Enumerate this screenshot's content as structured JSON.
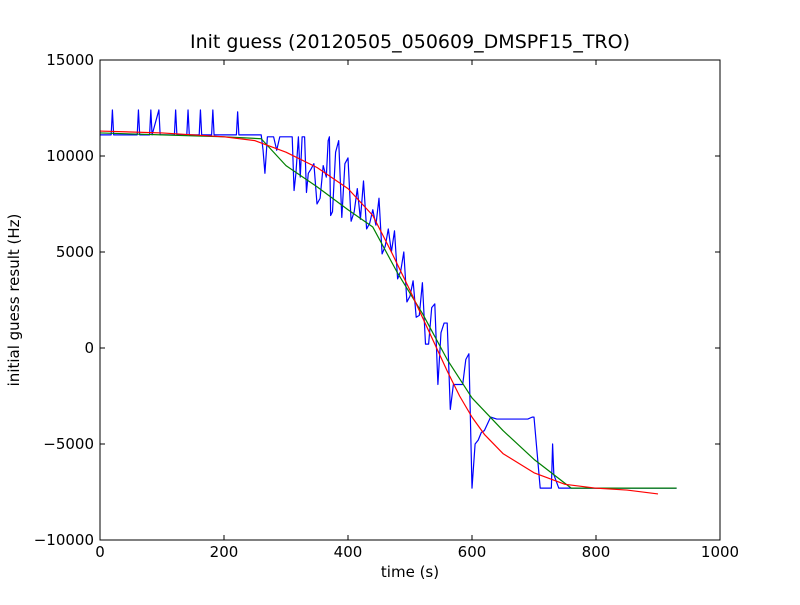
{
  "chart_data": {
    "type": "line",
    "title": "Init guess (20120505_050609_DMSPF15_TRO)",
    "xlabel": "time (s)",
    "ylabel": "initial guess result (Hz)",
    "xlim": [
      0,
      1000
    ],
    "ylim": [
      -10000,
      15000
    ],
    "xticks": [
      0,
      200,
      400,
      600,
      800,
      1000
    ],
    "xtick_labels": [
      "0",
      "200",
      "400",
      "600",
      "800",
      "1000"
    ],
    "yticks": [
      -10000,
      -5000,
      0,
      5000,
      10000,
      15000
    ],
    "ytick_labels": [
      "−10000",
      "−5000",
      "0",
      "5000",
      "10000",
      "15000"
    ],
    "grid": false,
    "legend": false,
    "series": [
      {
        "color": "#0000ff",
        "x": [
          0,
          18,
          20,
          22,
          60,
          62,
          64,
          80,
          82,
          84,
          95,
          97,
          105,
          107,
          120,
          122,
          124,
          140,
          142,
          144,
          160,
          162,
          164,
          180,
          182,
          184,
          220,
          222,
          224,
          260,
          263,
          266,
          270,
          280,
          285,
          290,
          297,
          300,
          303,
          310,
          313,
          316,
          320,
          323,
          326,
          330,
          333,
          336,
          340,
          345,
          350,
          355,
          360,
          365,
          368,
          370,
          372,
          375,
          380,
          385,
          390,
          395,
          400,
          405,
          410,
          415,
          420,
          425,
          430,
          435,
          440,
          445,
          450,
          455,
          460,
          465,
          470,
          475,
          480,
          485,
          490,
          495,
          500,
          505,
          510,
          515,
          520,
          525,
          530,
          535,
          540,
          545,
          550,
          555,
          560,
          565,
          570,
          575,
          580,
          585,
          590,
          595,
          600,
          605,
          610,
          615,
          620,
          630,
          640,
          660,
          680,
          690,
          697,
          700,
          710,
          720,
          728,
          730,
          732,
          740,
          760,
          800,
          850,
          900,
          930
        ],
        "y": [
          11100,
          11100,
          12400,
          11100,
          11100,
          12400,
          11100,
          11100,
          12400,
          11100,
          12400,
          11100,
          11100,
          11100,
          11100,
          12400,
          11100,
          11100,
          12400,
          11100,
          11100,
          12400,
          11100,
          11100,
          12400,
          11100,
          11100,
          12300,
          11100,
          11100,
          10300,
          9100,
          11000,
          11000,
          10300,
          11000,
          11000,
          11000,
          11000,
          11000,
          8200,
          9100,
          11000,
          8900,
          11000,
          11000,
          8100,
          9100,
          9300,
          9600,
          7500,
          7800,
          9500,
          8900,
          10800,
          11000,
          6900,
          7100,
          10200,
          10800,
          6800,
          9600,
          9900,
          6600,
          7100,
          8300,
          6700,
          8700,
          6200,
          6500,
          7200,
          6400,
          7800,
          4900,
          5300,
          6200,
          5000,
          6100,
          3600,
          4000,
          5000,
          2400,
          2700,
          3500,
          1600,
          1700,
          3400,
          200,
          200,
          2100,
          2300,
          -1900,
          800,
          1300,
          1300,
          -3200,
          -1900,
          -1900,
          -1900,
          -1900,
          -600,
          -300,
          -7300,
          -5000,
          -4800,
          -4400,
          -4300,
          -3600,
          -3700,
          -3700,
          -3700,
          -3700,
          -3600,
          -3600,
          -7300,
          -7300,
          -7300,
          -5000,
          -6600,
          -7300,
          -7300,
          -7300,
          -7300,
          -7300,
          -7300
        ]
      },
      {
        "color": "#008000",
        "x": [
          0,
          100,
          200,
          260,
          300,
          350,
          400,
          440,
          480,
          520,
          560,
          600,
          650,
          700,
          760,
          850,
          930
        ],
        "y": [
          11200,
          11100,
          11000,
          10900,
          9500,
          8400,
          7200,
          6300,
          3900,
          1800,
          -600,
          -2600,
          -4300,
          -5800,
          -7300,
          -7300,
          -7300
        ]
      },
      {
        "color": "#ff0000",
        "x": [
          0,
          100,
          200,
          250,
          300,
          350,
          400,
          440,
          470,
          500,
          520,
          540,
          560,
          580,
          600,
          620,
          650,
          700,
          750,
          800,
          850,
          900
        ],
        "y": [
          11300,
          11200,
          11000,
          10800,
          10200,
          9400,
          8300,
          6900,
          5000,
          3000,
          1600,
          200,
          -1200,
          -2500,
          -3600,
          -4500,
          -5500,
          -6500,
          -7100,
          -7300,
          -7400,
          -7600
        ]
      }
    ]
  }
}
